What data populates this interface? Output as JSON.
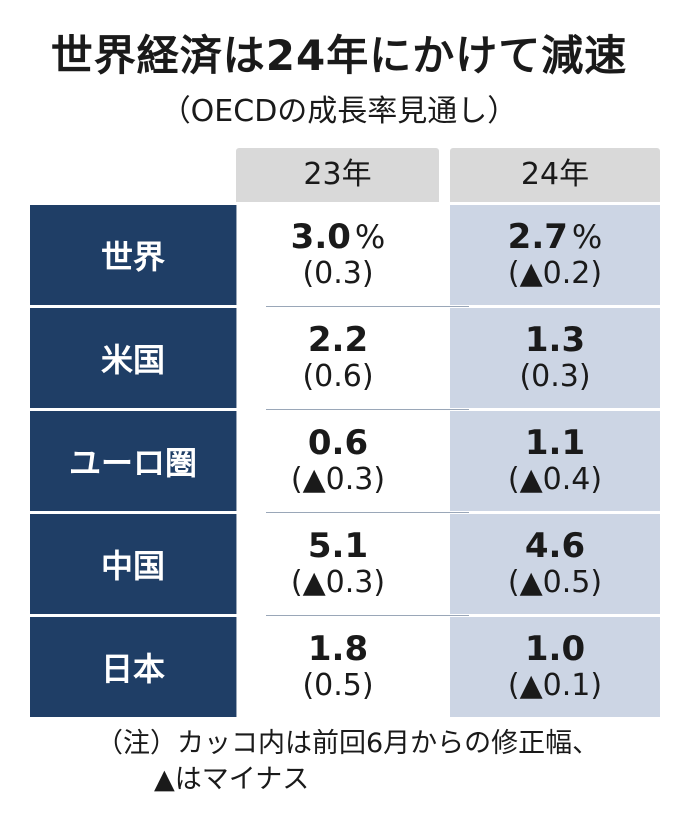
{
  "title": "世界経済は24年にかけて減速",
  "subtitle": "（OECDの成長率見通し）",
  "columns": {
    "y23": "23年",
    "y24": "24年"
  },
  "rows": [
    {
      "region": "世界",
      "v23": "3.0",
      "unit23": "%",
      "c23": "(0.3)",
      "v24": "2.7",
      "unit24": "%",
      "c24": "(▲0.2)"
    },
    {
      "region": "米国",
      "v23": "2.2",
      "c23": "(0.6)",
      "v24": "1.3",
      "c24": "(0.3)"
    },
    {
      "region": "ユーロ圏",
      "v23": "0.6",
      "c23": "(▲0.3)",
      "v24": "1.1",
      "c24": "(▲0.4)"
    },
    {
      "region": "中国",
      "v23": "5.1",
      "c23": "(▲0.3)",
      "v24": "4.6",
      "c24": "(▲0.5)"
    },
    {
      "region": "日本",
      "v23": "1.8",
      "c23": "(0.5)",
      "v24": "1.0",
      "c24": "(▲0.1)"
    }
  ],
  "note": {
    "line1": "（注）カッコ内は前回6月からの修正幅、",
    "line2": "▲はマイナス"
  },
  "colors": {
    "label_bg": "#1f3e66",
    "header_bg": "#d9d9d9",
    "col24_bg": "#ccd5e4"
  }
}
